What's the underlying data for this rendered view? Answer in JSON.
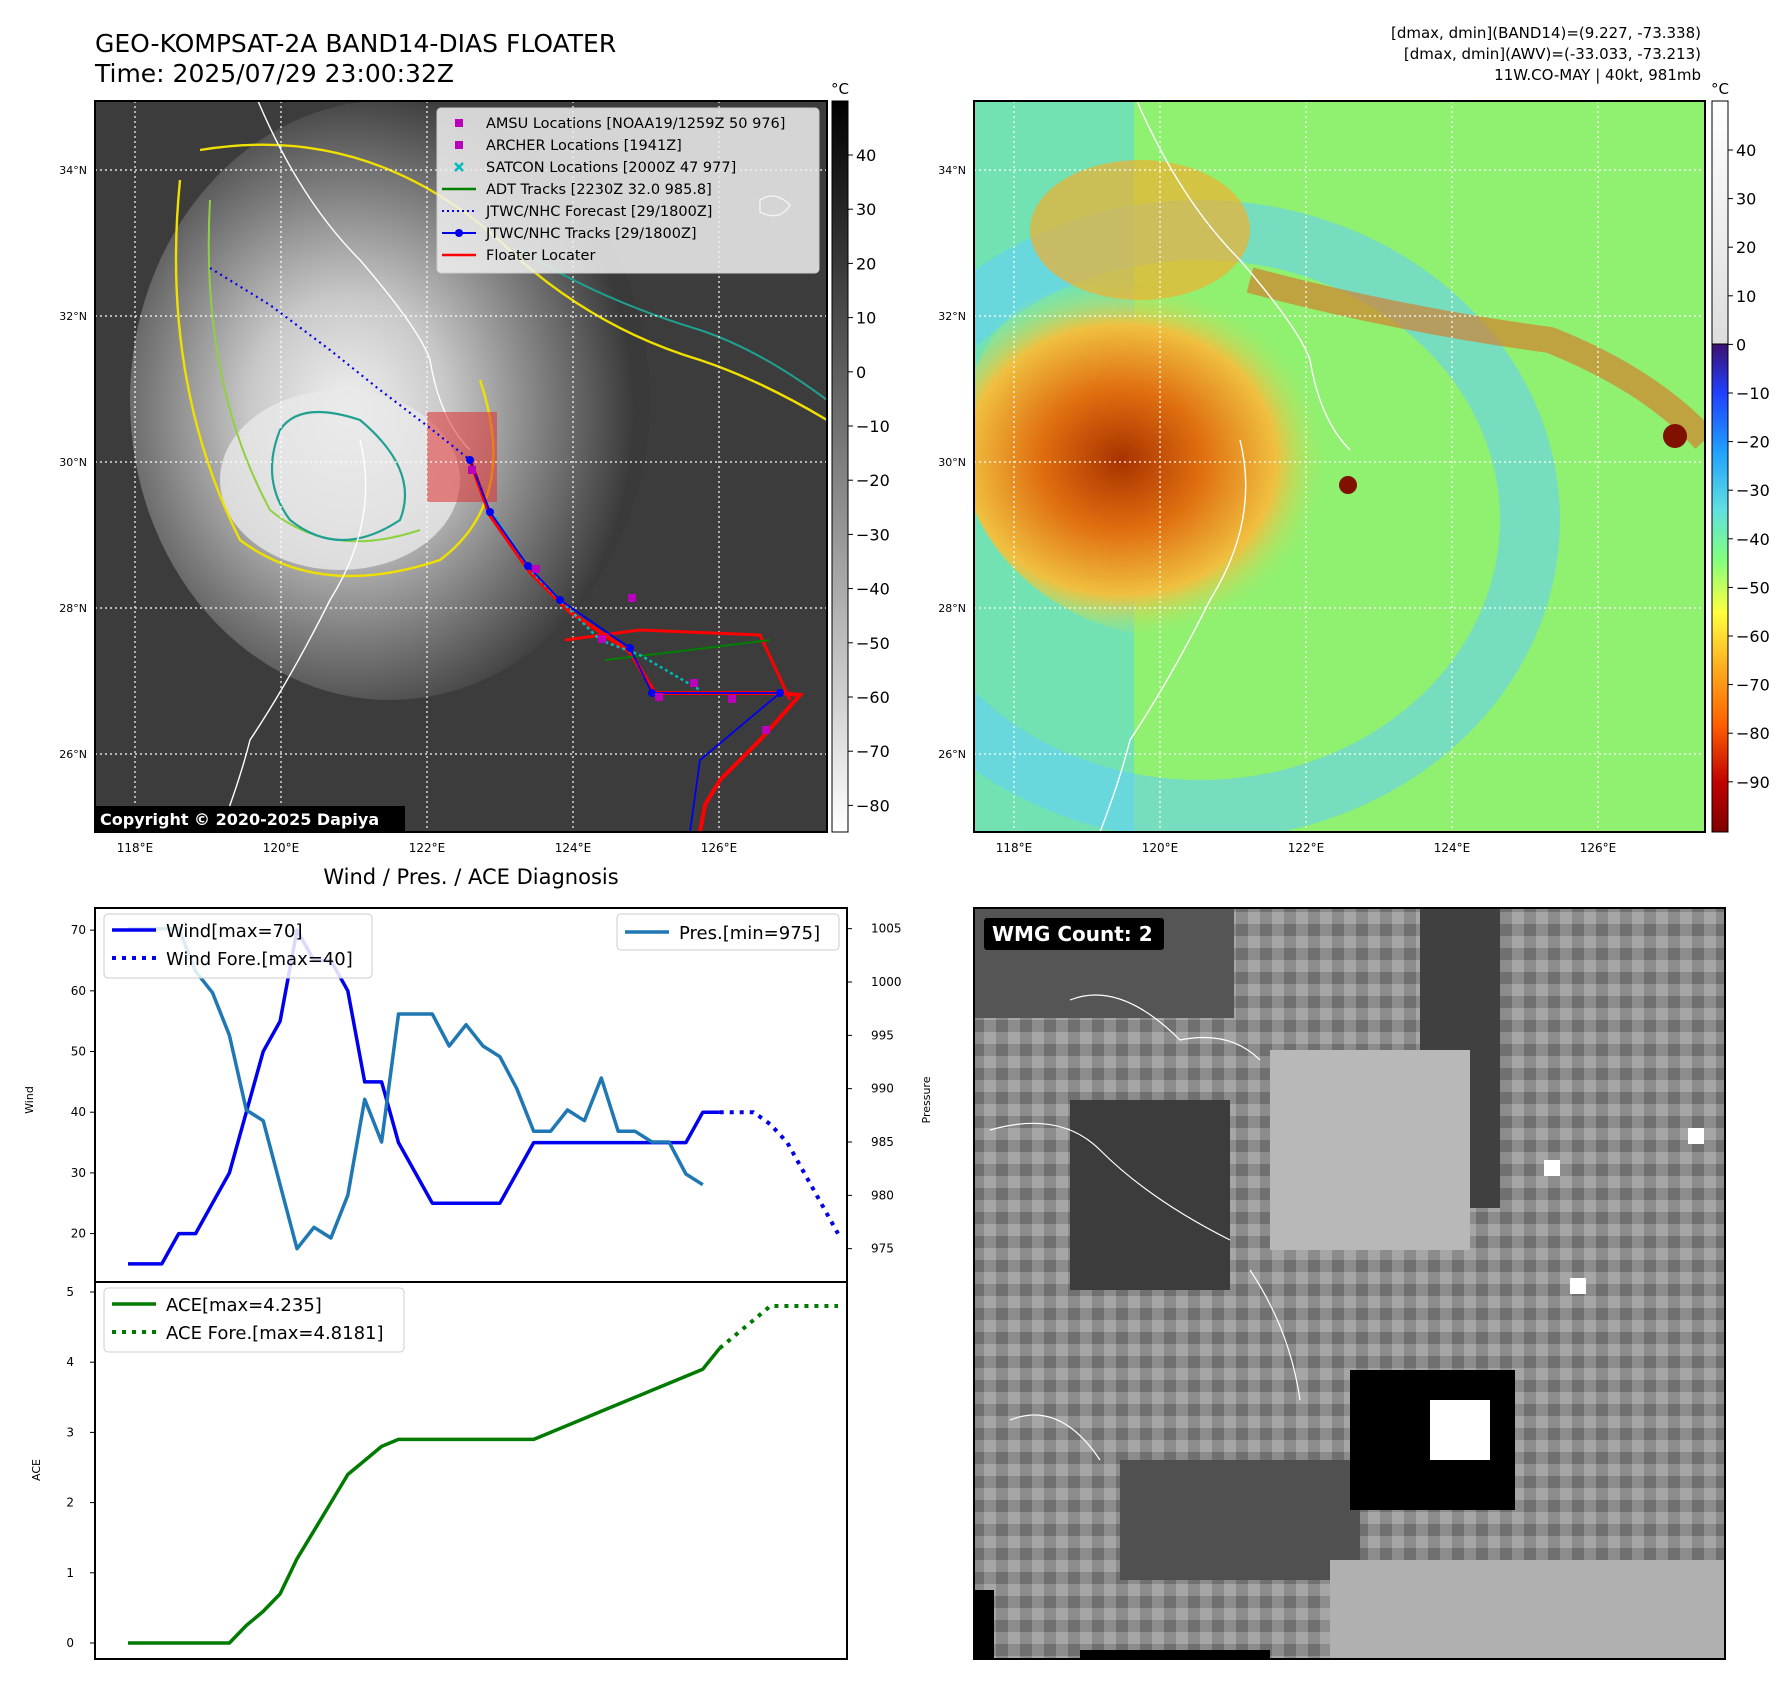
{
  "header": {
    "title_line1": "GEO-KOMPSAT-2A BAND14-DIAS FLOATER",
    "title_line2": "Time: 2025/07/29 23:00:32Z",
    "info_line1": "[dmax, dmin](BAND14)=(9.227, -73.338)",
    "info_line2": "[dmax, dmin](AWV)=(-33.033, -73.213)",
    "info_line3": "11W.CO-MAY | 40kt, 981mb"
  },
  "colors": {
    "wind": "#0000ee",
    "pressure": "#1f77b4",
    "ace": "#007a00",
    "floater": "#ff0000",
    "adt": "#008000",
    "satcon": "#00bbbb",
    "amsu": "#bb00bb"
  },
  "map_panels": {
    "lat_labels": [
      "34°N",
      "32°N",
      "30°N",
      "28°N",
      "26°N"
    ],
    "lon_labels": [
      "118°E",
      "120°E",
      "122°E",
      "124°E",
      "126°E"
    ],
    "copyright": "Copyright © 2020-2025 Dapiya",
    "ir_colorbar": {
      "unit": "°C",
      "ticks": [
        "40",
        "30",
        "20",
        "10",
        "0",
        "−10",
        "−20",
        "−30",
        "−40",
        "−50",
        "−60",
        "−70",
        "−80"
      ]
    },
    "wv_colorbar": {
      "unit": "°C",
      "ticks": [
        "40",
        "30",
        "20",
        "10",
        "0",
        "−10",
        "−20",
        "−30",
        "−40",
        "−50",
        "−60",
        "−70",
        "−80",
        "−90"
      ]
    }
  },
  "legend_map": [
    {
      "label": "AMSU Locations [NOAA19/1259Z 50 976]",
      "icon": "square-marker-icon"
    },
    {
      "label": "ARCHER Locations [1941Z]",
      "icon": "square-marker-icon"
    },
    {
      "label": "SATCON Locations [2000Z 47 977]",
      "icon": "x-marker-icon"
    },
    {
      "label": "ADT Tracks [2230Z 32.0 985.8]",
      "icon": "line-icon"
    },
    {
      "label": "JTWC/NHC Forecast [29/1800Z]",
      "icon": "dotted-line-icon"
    },
    {
      "label": "JTWC/NHC Tracks [29/1800Z]",
      "icon": "line-dot-icon"
    },
    {
      "label": "Floater Locater",
      "icon": "line-icon"
    }
  ],
  "wmg": {
    "label": "WMG Count: 2"
  },
  "chart_data": [
    {
      "type": "line",
      "title": "Wind / Pres. / ACE Diagnosis",
      "ylabel": "Wind",
      "ylabel_right": "Pressure",
      "ylim": [
        14,
        72
      ],
      "ylim_right": [
        973,
        1006
      ],
      "y_ticks": [
        20,
        30,
        40,
        50,
        60,
        70
      ],
      "y_ticks_right": [
        975,
        980,
        985,
        990,
        995,
        1000,
        1005
      ],
      "x": [
        0,
        1,
        2,
        3,
        4,
        5,
        6,
        7,
        8,
        9,
        10,
        11,
        12,
        13,
        14,
        15,
        16,
        17,
        18,
        19,
        20,
        21,
        22,
        23,
        24,
        25,
        26,
        27,
        28,
        29,
        30,
        31,
        32,
        33,
        34,
        35,
        36,
        37,
        38,
        39,
        40,
        41
      ],
      "series": [
        {
          "name": "Wind[max=70]",
          "role": "wind",
          "x": [
            0,
            1,
            2,
            3,
            4,
            5,
            6,
            7,
            8,
            9,
            10,
            11,
            12,
            13,
            14,
            15,
            16,
            17,
            18,
            19,
            20,
            21,
            22,
            23,
            24,
            25,
            26,
            27,
            28,
            29,
            30,
            31,
            32,
            33,
            34,
            35
          ],
          "values": [
            15,
            15,
            15,
            20,
            20,
            25,
            30,
            40,
            50,
            55,
            70,
            65,
            65,
            60,
            45,
            45,
            35,
            30,
            25,
            25,
            25,
            25,
            25,
            30,
            35,
            35,
            35,
            35,
            35,
            35,
            35,
            35,
            35,
            35,
            40,
            40
          ]
        },
        {
          "name": "Wind Fore.[max=40]",
          "role": "wind_forecast",
          "x": [
            35,
            36,
            37,
            38,
            39,
            40,
            41,
            42
          ],
          "values": [
            40,
            40,
            40,
            38,
            35,
            30,
            25,
            20
          ]
        },
        {
          "name": "Pres.[min=975]",
          "role": "pressure",
          "x": [
            0,
            1,
            2,
            3,
            4,
            5,
            6,
            7,
            8,
            9,
            10,
            11,
            12,
            13,
            14,
            15,
            16,
            17,
            18,
            19,
            20,
            21,
            22,
            23,
            24,
            25,
            26,
            27,
            28,
            29,
            30,
            31,
            32,
            33,
            34
          ],
          "values": [
            1005,
            1005,
            1005,
            1005,
            1001,
            999,
            995,
            988,
            987,
            981,
            975,
            977,
            976,
            980,
            989,
            985,
            997,
            997,
            997,
            994,
            996,
            994,
            993,
            990,
            986,
            986,
            988,
            987,
            991,
            986,
            986,
            985,
            985,
            982,
            981
          ]
        }
      ]
    },
    {
      "type": "line",
      "ylabel": "ACE",
      "ylim": [
        -0.2,
        5.0
      ],
      "y_ticks": [
        0,
        1,
        2,
        3,
        4,
        5
      ],
      "series": [
        {
          "name": "ACE[max=4.235]",
          "role": "ace",
          "x": [
            0,
            1,
            2,
            3,
            4,
            5,
            6,
            7,
            8,
            9,
            10,
            11,
            12,
            13,
            14,
            15,
            16,
            17,
            18,
            19,
            20,
            21,
            22,
            23,
            24,
            25,
            26,
            27,
            28,
            29,
            30,
            31,
            32,
            33,
            34,
            35
          ],
          "values": [
            0,
            0,
            0,
            0,
            0,
            0,
            0,
            0.25,
            0.45,
            0.7,
            1.2,
            1.6,
            2.0,
            2.4,
            2.6,
            2.8,
            2.9,
            2.9,
            2.9,
            2.9,
            2.9,
            2.9,
            2.9,
            2.9,
            2.9,
            3.0,
            3.1,
            3.2,
            3.3,
            3.4,
            3.5,
            3.6,
            3.7,
            3.8,
            3.9,
            4.2
          ]
        },
        {
          "name": "ACE Fore.[max=4.8181]",
          "role": "ace_forecast",
          "x": [
            35,
            36,
            37,
            38,
            39,
            40,
            41,
            42
          ],
          "values": [
            4.2,
            4.4,
            4.6,
            4.8,
            4.8,
            4.8,
            4.8,
            4.8
          ]
        }
      ]
    }
  ]
}
